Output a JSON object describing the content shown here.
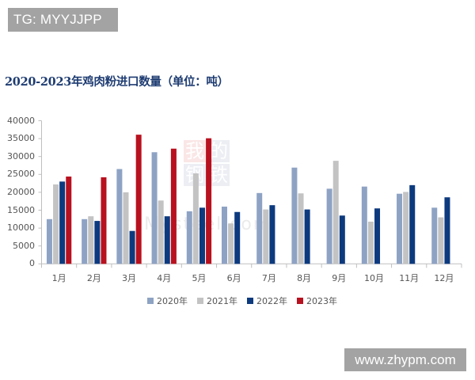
{
  "badges": {
    "tg": "TG: MYYJJPP",
    "url": "www.zhypm.com"
  },
  "watermark": {
    "chars": [
      "我",
      "的",
      "钢",
      "铁"
    ],
    "text": "Mysteel.com"
  },
  "colors": {
    "2020": "#8ea3c4",
    "2021": "#c3c3c3",
    "2022": "#0d3a7e",
    "2023": "#b8111f",
    "title": "#1e3c72",
    "axis": "#bfbfbf"
  },
  "chart_data": {
    "type": "bar",
    "title": "2020-2023年鸡肉粉进口数量（单位：吨）",
    "xlabel": "",
    "ylabel": "",
    "ylim": [
      0,
      40000
    ],
    "yticks": [
      0,
      5000,
      10000,
      15000,
      20000,
      25000,
      30000,
      35000,
      40000
    ],
    "categories": [
      "1月",
      "2月",
      "3月",
      "4月",
      "5月",
      "6月",
      "7月",
      "8月",
      "9月",
      "10月",
      "11月",
      "12月"
    ],
    "series": [
      {
        "name": "2020年",
        "values": [
          12500,
          12500,
          26500,
          31200,
          14700,
          16000,
          19800,
          26900,
          21000,
          21600,
          19600,
          15700
        ]
      },
      {
        "name": "2021年",
        "values": [
          22200,
          13300,
          20000,
          17700,
          25300,
          11300,
          15200,
          19700,
          28800,
          11800,
          20100,
          13000
        ]
      },
      {
        "name": "2022年",
        "values": [
          23000,
          12000,
          9200,
          13300,
          15700,
          14500,
          16400,
          15200,
          13500,
          15500,
          22000,
          18600
        ]
      },
      {
        "name": "2023年",
        "values": [
          24400,
          24200,
          36100,
          32200,
          35100,
          null,
          null,
          null,
          null,
          null,
          null,
          null
        ]
      }
    ],
    "legend_position": "bottom",
    "grid": false
  }
}
